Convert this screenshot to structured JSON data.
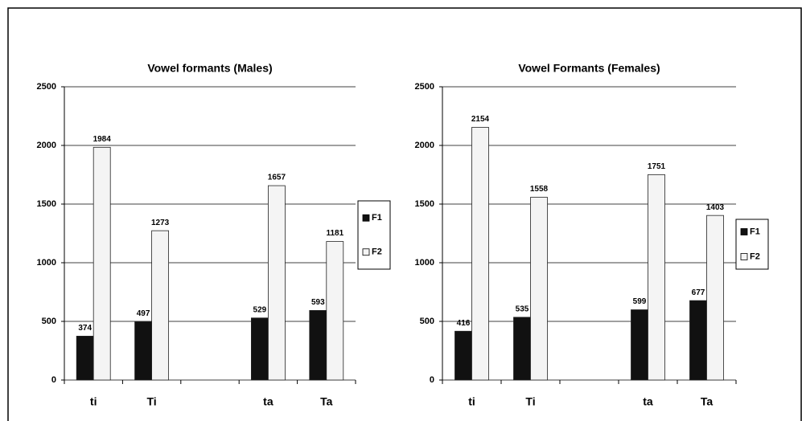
{
  "chart_data": [
    {
      "type": "bar",
      "title": "Vowel formants (Males)",
      "categories": [
        "ti",
        "Ti",
        null,
        "ta",
        "Ta"
      ],
      "series": [
        {
          "name": "F1",
          "color": "#111111",
          "values": [
            374,
            497,
            null,
            529,
            593
          ]
        },
        {
          "name": "F2",
          "color": "#f4f4f4",
          "values": [
            1984,
            1273,
            null,
            1657,
            1181
          ]
        }
      ],
      "ylim": [
        0,
        2500
      ],
      "yticks": [
        0,
        500,
        1000,
        1500,
        2000,
        2500
      ],
      "grid": true,
      "legend": "right"
    },
    {
      "type": "bar",
      "title": "Vowel Formants (Females)",
      "categories": [
        "ti",
        "Ti",
        null,
        "ta",
        "Ta"
      ],
      "series": [
        {
          "name": "F1",
          "color": "#111111",
          "values": [
            416,
            535,
            null,
            599,
            677
          ]
        },
        {
          "name": "F2",
          "color": "#f4f4f4",
          "values": [
            2154,
            1558,
            null,
            1751,
            1403
          ]
        }
      ],
      "ylim": [
        0,
        2500
      ],
      "yticks": [
        0,
        500,
        1000,
        1500,
        2000,
        2500
      ],
      "grid": true,
      "legend": "right"
    }
  ]
}
